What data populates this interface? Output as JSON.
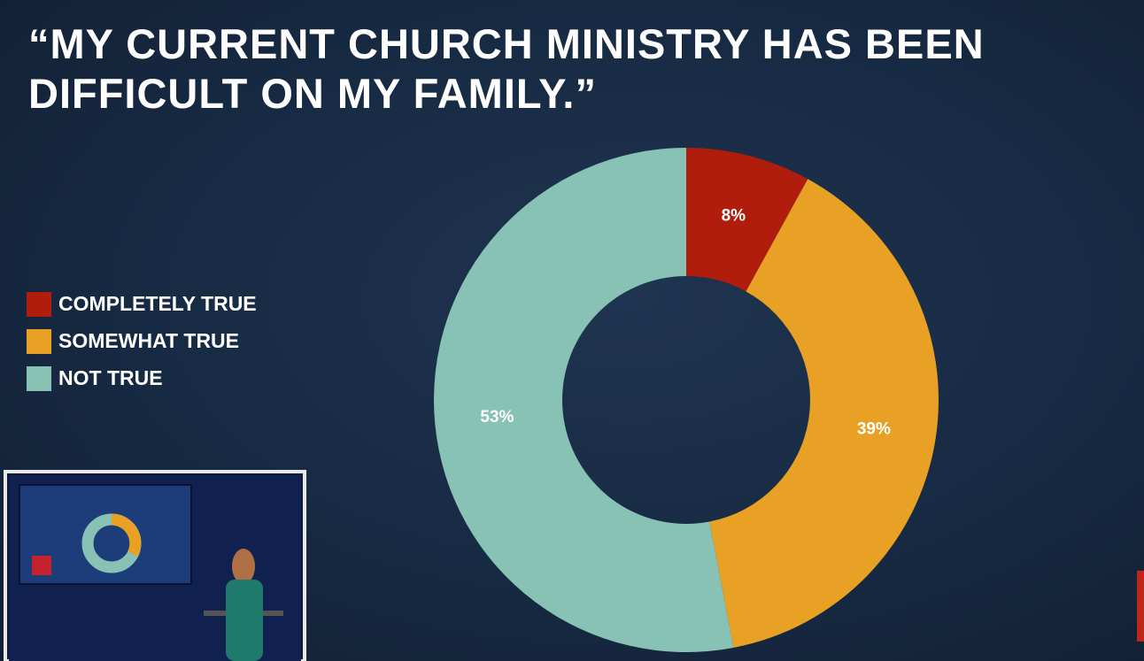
{
  "chart_data": {
    "type": "donut",
    "title": "“MY CURRENT CHURCH MINISTRY HAS BEEN DIFFICULT ON MY FAMILY.”",
    "categories": [
      "COMPLETELY TRUE",
      "SOMEWHAT TRUE",
      "NOT TRUE"
    ],
    "values": [
      8,
      39,
      53
    ],
    "value_labels": [
      "8%",
      "39%",
      "53%"
    ],
    "colors": [
      "#b01d0c",
      "#e8a124",
      "#87c2b5"
    ],
    "legend": "left"
  }
}
